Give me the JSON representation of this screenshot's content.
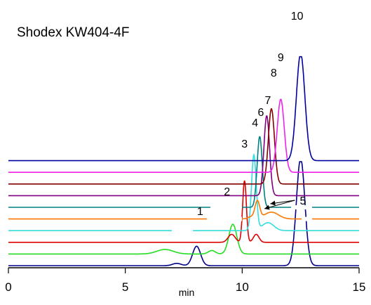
{
  "chart_data": {
    "type": "line",
    "title": "Shodex KW404-4F",
    "xlabel": "min",
    "ylabel": "",
    "xlim": [
      0,
      15
    ],
    "x_ticks": [
      "0",
      "5",
      "10",
      "15"
    ],
    "grid": false,
    "series": [
      {
        "name": "",
        "color": "#00008B",
        "offset": 0,
        "peaks": [
          [
            7.2,
            0.1,
            0.18
          ],
          [
            8.05,
            0.85,
            0.17
          ],
          [
            12.5,
            4.7,
            0.18
          ]
        ]
      },
      {
        "name": "",
        "color": "#22DD22",
        "offset": 1,
        "peaks": [
          [
            6.7,
            0.2,
            0.35
          ],
          [
            8.7,
            0.15,
            0.15
          ],
          [
            9.6,
            1.3,
            0.17
          ]
        ]
      },
      {
        "name": "",
        "color": "#DD0000",
        "offset": 2,
        "peaks": [
          [
            9.55,
            0.35,
            0.15
          ],
          [
            10.1,
            2.7,
            0.08
          ],
          [
            10.6,
            0.35,
            0.12
          ]
        ]
      },
      {
        "name": "",
        "color": "#33DDDD",
        "offset": 3,
        "peaks": [
          [
            10.5,
            3.3,
            0.1
          ],
          [
            11.1,
            0.35,
            0.25
          ]
        ]
      },
      {
        "name": "",
        "color": "#FF7700",
        "offset": 4,
        "peaks": [
          [
            10.4,
            0.1,
            0.15
          ],
          [
            10.65,
            0.75,
            0.1
          ],
          [
            11.25,
            0.3,
            0.3
          ]
        ]
      },
      {
        "name": "",
        "color": "#008080",
        "offset": 5,
        "peaks": [
          [
            10.75,
            3.1,
            0.11
          ]
        ]
      },
      {
        "name": "",
        "color": "#800080",
        "offset": 6,
        "peaks": [
          [
            11.05,
            3.5,
            0.12
          ]
        ]
      },
      {
        "name": "",
        "color": "#800000",
        "offset": 7,
        "peaks": [
          [
            11.25,
            3.3,
            0.13
          ]
        ]
      },
      {
        "name": "",
        "color": "#EE22EE",
        "offset": 8,
        "peaks": [
          [
            11.65,
            3.2,
            0.15
          ]
        ]
      },
      {
        "name": "",
        "color": "#0000A0",
        "offset": 9,
        "peaks": [
          [
            12.5,
            4.7,
            0.18
          ]
        ]
      }
    ],
    "annotations": [
      {
        "text": "1",
        "x": 8.2
      },
      {
        "text": "2",
        "x": 9.35
      },
      {
        "text": "3",
        "x": 10.1
      },
      {
        "text": "4",
        "x": 10.55
      },
      {
        "text": "5",
        "x": 12.6
      },
      {
        "text": "6",
        "x": 10.8
      },
      {
        "text": "7",
        "x": 11.1
      },
      {
        "text": "8",
        "x": 11.35
      },
      {
        "text": "9",
        "x": 11.65
      },
      {
        "text": "10",
        "x": 12.35
      }
    ]
  }
}
